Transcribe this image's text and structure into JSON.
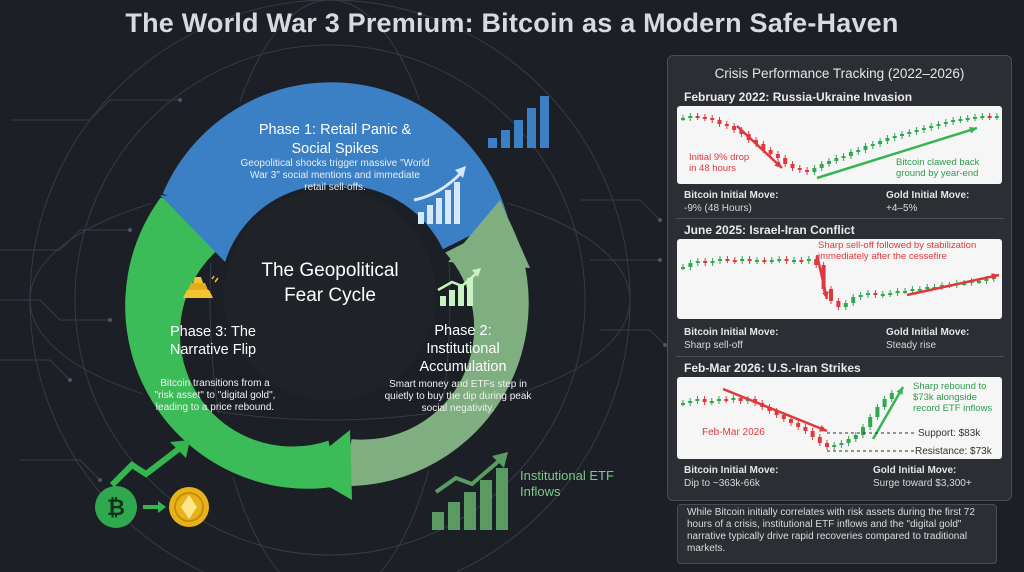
{
  "title": "The World War 3 Premium: Bitcoin as a Modern Safe-Haven",
  "cycle": {
    "center": "The Geopolitical Fear Cycle",
    "phases": [
      {
        "title": "Phase 1: Retail Panic & Social Spikes",
        "body": "Geopolitical shocks trigger massive \"World War 3\" social mentions and immediate retail sell-offs.",
        "color": "#3b7fc4"
      },
      {
        "title": "Phase 2: Institutional Accumulation",
        "body": "Smart money and ETFs step in quietly to buy the dip during peak social negativity.",
        "color": "#7fb27e"
      },
      {
        "title": "Phase 3: The Narrative Flip",
        "body": "Bitcoin transitions from a \"risk asset\" to \"digital gold\", leading to a price rebound.",
        "color": "#3fbf5b"
      }
    ],
    "etf_label": "Institutional ETF Inflows"
  },
  "panel": {
    "title": "Crisis Performance Tracking (2022–2026)",
    "sections": [
      {
        "heading": "February 2022: Russia-Ukraine Invasion",
        "annotations": [
          "Initial 9% drop in 48 hours",
          "Bitcoin clawed back ground by year-end"
        ],
        "btc_label": "Bitcoin Initial Move:",
        "btc_value": "-9% (48 Hours)",
        "gold_label": "Gold Initial Move:",
        "gold_value": "+4–5%"
      },
      {
        "heading": "June 2025: Israel-Iran Conflict",
        "annotations": [
          "Sharp sell-off followed by stabilization immediately after the cessefire"
        ],
        "btc_label": "Bitcoin Initial Move:",
        "btc_value": "Sharp sell-off",
        "gold_label": "Gold Initial Move:",
        "gold_value": "Steady rise"
      },
      {
        "heading": "Feb-Mar 2026: U.S.-Iran Strikes",
        "annotations": [
          "Sharp rebound to $73k alongside record ETF inflows",
          "Feb-Mar 2026",
          "Support: $83k",
          "Resistance: $73k"
        ],
        "btc_label": "Bitcoin Initial Move:",
        "btc_value": "Dip to ~363k-66k",
        "gold_label": "Gold Initial Move:",
        "gold_value": "Surge toward $3,300+"
      }
    ]
  },
  "note": "While Bitcoin initially correlates with risk assets during the first 72 hours of a crisis, institutional ETF inflows and the \"digital gold\" narrative typically drive rapid recoveries compared to traditional markets.",
  "colors": {
    "up": "#2fa84f",
    "down": "#e0383e",
    "arrow_red": "#e0383e",
    "arrow_green": "#35b54f"
  }
}
